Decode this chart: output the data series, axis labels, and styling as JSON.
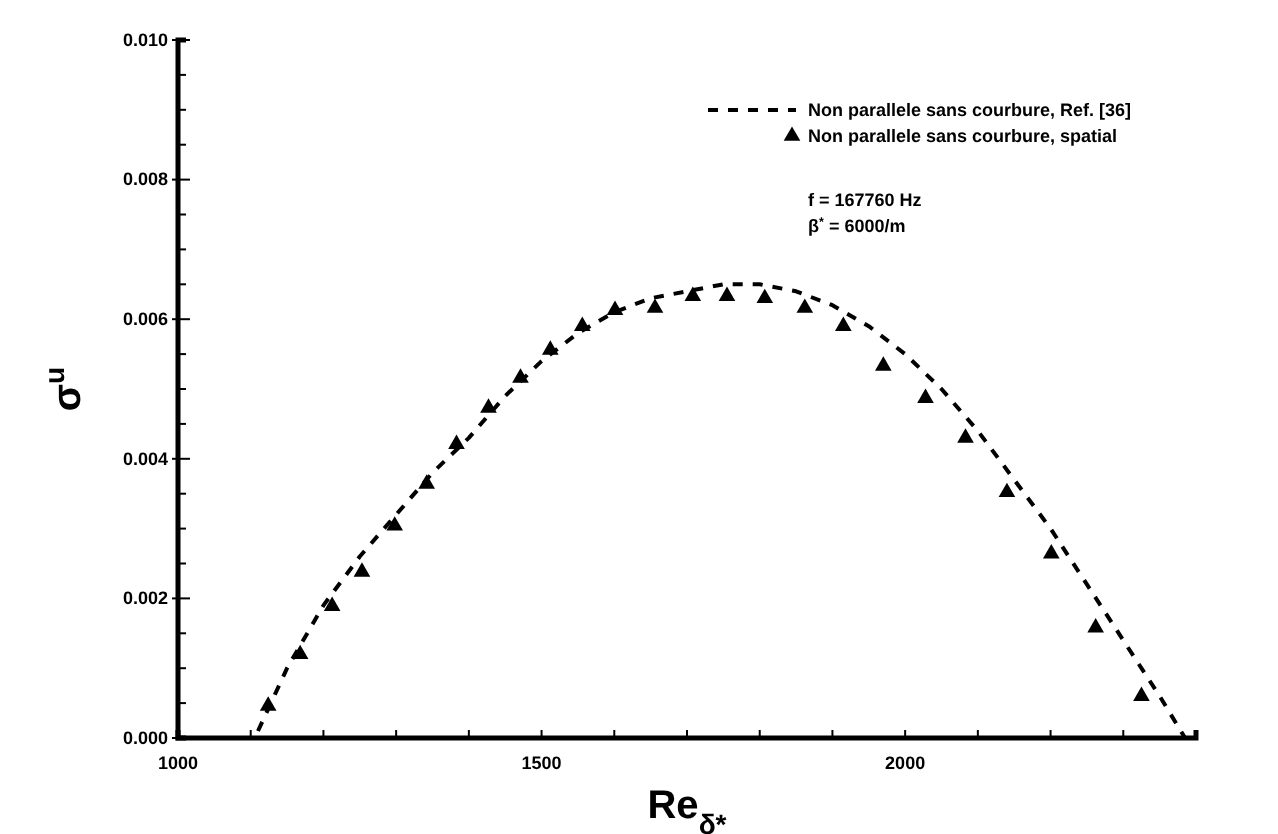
{
  "chart_data": {
    "type": "line",
    "xlabel": "Re$_{δ*}$",
    "ylabel": "σ$^{u}$",
    "xlim": [
      1000,
      2400
    ],
    "ylim": [
      0,
      0.01
    ],
    "xticks": [
      1000,
      {
        "value": 1100,
        "label": null
      },
      {
        "value": 1200,
        "label": null
      },
      {
        "value": 1300,
        "label": null
      },
      {
        "value": 1400,
        "label": null
      },
      1500,
      {
        "value": 1600,
        "label": null
      },
      {
        "value": 1700,
        "label": null
      },
      {
        "value": 1800,
        "label": null
      },
      {
        "value": 1900,
        "label": null
      },
      2000,
      {
        "value": 2100,
        "label": null
      },
      {
        "value": 2200,
        "label": null
      },
      {
        "value": 2300,
        "label": null
      }
    ],
    "yticks": [
      {
        "value": 0,
        "label": "0.000"
      },
      {
        "value": 0.0005,
        "label": null
      },
      {
        "value": 0.001,
        "label": null
      },
      {
        "value": 0.0015,
        "label": null
      },
      {
        "value": 0.002,
        "label": "0.002"
      },
      {
        "value": 0.0025,
        "label": null
      },
      {
        "value": 0.003,
        "label": null
      },
      {
        "value": 0.0035,
        "label": null
      },
      {
        "value": 0.004,
        "label": "0.004"
      },
      {
        "value": 0.0045,
        "label": null
      },
      {
        "value": 0.005,
        "label": null
      },
      {
        "value": 0.0055,
        "label": null
      },
      {
        "value": 0.006,
        "label": "0.006"
      },
      {
        "value": 0.0065,
        "label": null
      },
      {
        "value": 0.007,
        "label": null
      },
      {
        "value": 0.0075,
        "label": null
      },
      {
        "value": 0.008,
        "label": "0.008"
      },
      {
        "value": 0.0085,
        "label": null
      },
      {
        "value": 0.009,
        "label": null
      },
      {
        "value": 0.0095,
        "label": null
      },
      {
        "value": 0.01,
        "label": "0.010"
      }
    ],
    "grid": false,
    "legend": "top right",
    "annotations": [
      "f = 167760 Hz",
      "β$^{*}$ = 6000/m"
    ],
    "series": [
      {
        "name": "Non parallele sans courbure, Ref. [36]",
        "color": "#000000",
        "line_style": "dashed",
        "marker": "none",
        "x": [
          1110,
          1150,
          1200,
          1250,
          1300,
          1350,
          1400,
          1450,
          1500,
          1550,
          1600,
          1650,
          1700,
          1750,
          1800,
          1850,
          1900,
          1950,
          2000,
          2050,
          2100,
          2150,
          2200,
          2250,
          2300,
          2350,
          2385
        ],
        "values": [
          0.0001,
          0.001,
          0.0019,
          0.0026,
          0.0032,
          0.0038,
          0.0043,
          0.0049,
          0.0054,
          0.0058,
          0.0061,
          0.0063,
          0.0064,
          0.0065,
          0.0065,
          0.0064,
          0.0062,
          0.0059,
          0.0055,
          0.005,
          0.0044,
          0.0037,
          0.003,
          0.0022,
          0.0014,
          0.0006,
          0.0
        ]
      },
      {
        "name": "Non parallele sans courbure, spatial",
        "type": "scatter",
        "color": "#000000",
        "marker": "triangle",
        "x": [
          1124,
          1168,
          1212,
          1253,
          1298,
          1342,
          1383,
          1427,
          1471,
          1512,
          1556,
          1601,
          1656,
          1708,
          1755,
          1807,
          1862,
          1915,
          1970,
          2028,
          2083,
          2140,
          2201,
          2262,
          2325
        ],
        "values": [
          0.00046,
          0.0012,
          0.00189,
          0.00238,
          0.00304,
          0.00364,
          0.00421,
          0.00473,
          0.00516,
          0.00556,
          0.0059,
          0.00613,
          0.00616,
          0.00633,
          0.00633,
          0.0063,
          0.00616,
          0.0059,
          0.00533,
          0.00487,
          0.0043,
          0.00352,
          0.00264,
          0.00158,
          0.0006
        ]
      }
    ]
  }
}
